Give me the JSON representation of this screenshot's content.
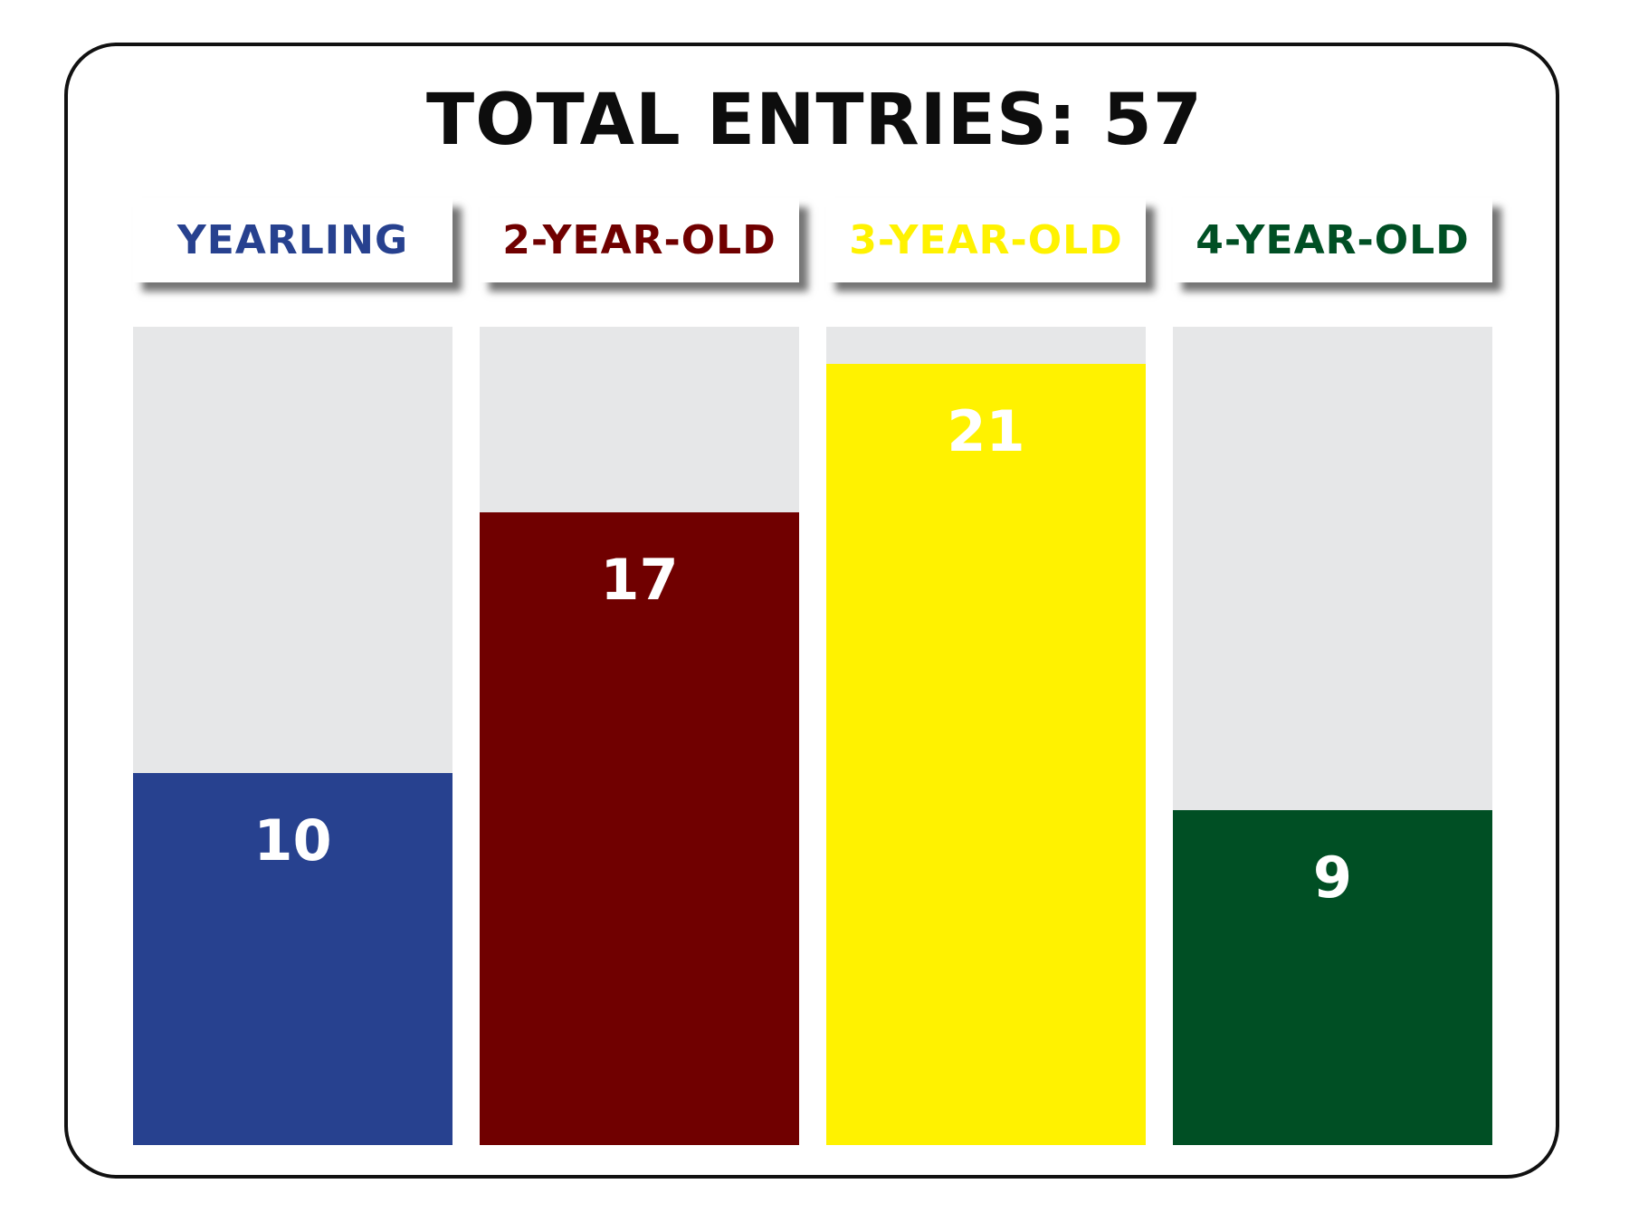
{
  "chart_data": {
    "type": "bar",
    "title": "TOTAL ENTRIES: 57",
    "categories": [
      "YEARLING",
      "2-YEAR-OLD",
      "3-YEAR-OLD",
      "4-YEAR-OLD"
    ],
    "values": [
      10,
      17,
      21,
      9
    ],
    "colors": [
      "#27418f",
      "#700000",
      "#fff200",
      "#004f24"
    ],
    "track_color": "#e6e7e8",
    "ylim": [
      0,
      22
    ],
    "grid": false,
    "legend": "none"
  }
}
